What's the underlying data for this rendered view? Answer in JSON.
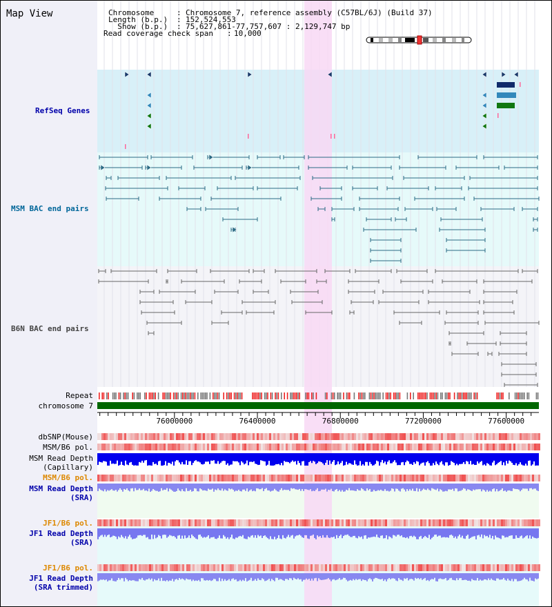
{
  "title": "Map View",
  "header": {
    "rows": [
      {
        "label": "Chromosome     ",
        "value": "Chromosome 7, reference assembly (C57BL/6J) (Build 37)"
      },
      {
        "label": "Length (b.p.)  ",
        "value": "152,524,553"
      },
      {
        "label": "  Show (b.p.)  ",
        "value": "75,627,861-77,757,607 : 2,129,747 bp"
      },
      {
        "label": "Read coverage check span",
        "value": "10,000"
      }
    ]
  },
  "tracks": {
    "refseq": "RefSeq Genes",
    "msm_bac": "MSM BAC end pairs",
    "b6n_bac": "B6N BAC end pairs",
    "repeat": "Repeat",
    "chromosome": "chromosome 7",
    "dbsnp": "dbSNP(Mouse)",
    "msm_b6_pol": "MSM/B6 pol.",
    "msm_depth_cap_1": "MSM Read Depth",
    "msm_depth_cap_2": "(Capillary)",
    "msm_b6_pol_2": "MSM/B6 pol.",
    "msm_depth_sra_1": "MSM Read Depth",
    "msm_depth_sra_2": "(SRA)",
    "jf1_b6_pol": "JF1/B6 pol.",
    "jf1_depth_1": "JF1 Read Depth",
    "jf1_depth_2": "(SRA)",
    "jf1_b6_pol_2": "JF1/B6 pol.",
    "jf1_trim_1": "JF1 Read Depth",
    "jf1_trim_2": "(SRA trimmed)"
  },
  "axis": {
    "start": 75627861,
    "end": 77757607,
    "ticks": [
      "76000000",
      "76400000",
      "76800000",
      "77200000",
      "77600000"
    ]
  },
  "colors": {
    "refseq_bg": "#d8f0f8",
    "msm_bac_bg": "#e6fafa",
    "b6n_bac_bg": "#f4f4f8",
    "highlight": "#f8d8f4",
    "chromosome_bar": "#006600",
    "depth_blue": "#0000ee",
    "depth_light": "#8888f0",
    "snp_red": "#f04848",
    "label_blue": "#0000aa",
    "label_teal": "#006699",
    "label_orange": "#dd8800"
  }
}
